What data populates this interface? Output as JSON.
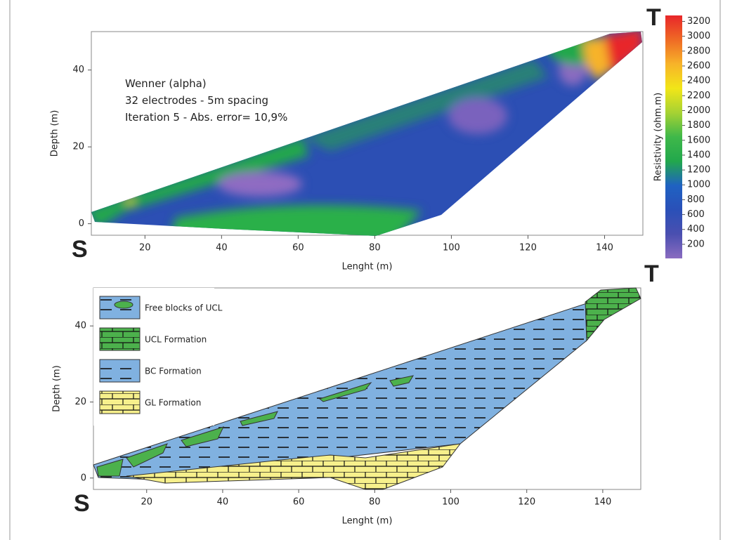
{
  "chart_data": [
    {
      "type": "tomography",
      "annotations": [
        "Wenner (alpha)",
        "32 electrodes - 5m spacing",
        "Iteration 5 - Abs. error= 10,9%"
      ],
      "corner_labels": [
        "S",
        "T"
      ],
      "x_label": "Lenght (m)",
      "y_label": "Depth (m)",
      "xlim": [
        6,
        150
      ],
      "ylim": [
        -3,
        50
      ],
      "xticks": [
        20,
        40,
        60,
        80,
        100,
        120,
        140
      ],
      "yticks": [
        0,
        20,
        40
      ],
      "colorbar": {
        "label": "Resistivity (ohm.m)",
        "lim": [
          10,
          3280
        ],
        "ticks": [
          200,
          400,
          600,
          800,
          1000,
          1200,
          1400,
          1600,
          1800,
          2000,
          2200,
          2400,
          2600,
          2800,
          3000,
          3200
        ],
        "colors": [
          "#8a6cc0",
          "#4a4fb0",
          "#2a50b8",
          "#1f62c2",
          "#22a84c",
          "#3fb84a",
          "#a6d233",
          "#f2e618",
          "#f7b329",
          "#ef6a25",
          "#e8262a"
        ]
      }
    },
    {
      "type": "section",
      "corner_labels": [
        "S",
        "T"
      ],
      "x_label": "Lenght (m)",
      "y_label": "Depth (m)",
      "xlim": [
        6,
        150
      ],
      "ylim": [
        -3,
        50
      ],
      "xticks": [
        20,
        40,
        60,
        80,
        100,
        120,
        140
      ],
      "yticks": [
        0,
        20,
        40
      ],
      "legend": [
        {
          "name": "Free blocks of UCL",
          "color": "#80b1e0"
        },
        {
          "name": "UCL Formation",
          "color": "#4cb14c"
        },
        {
          "name": "BC Formation",
          "color": "#80b1e0"
        },
        {
          "name": "GL Formation",
          "color": "#f7f08c"
        }
      ]
    }
  ]
}
